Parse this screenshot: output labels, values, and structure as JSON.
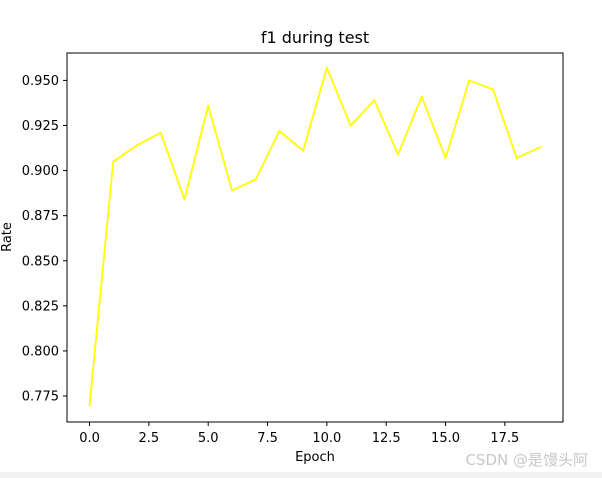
{
  "chart_data": {
    "type": "line",
    "title": "f1 during test",
    "xlabel": "Epoch",
    "ylabel": "Rate",
    "xlim": [
      -0.95,
      19.95
    ],
    "ylim": [
      0.7606,
      0.9652
    ],
    "x_ticks": [
      "0.0",
      "2.5",
      "5.0",
      "7.5",
      "10.0",
      "12.5",
      "15.0",
      "17.5"
    ],
    "y_ticks": [
      "0.775",
      "0.800",
      "0.825",
      "0.850",
      "0.875",
      "0.900",
      "0.925",
      "0.950"
    ],
    "grid": false,
    "series": [
      {
        "color": "#ffff00",
        "x": [
          0,
          1,
          2,
          3,
          4,
          5,
          6,
          7,
          8,
          9,
          10,
          11,
          12,
          13,
          14,
          15,
          16,
          17,
          18,
          19
        ],
        "values": [
          0.77,
          0.905,
          0.914,
          0.921,
          0.884,
          0.936,
          0.889,
          0.895,
          0.922,
          0.911,
          0.957,
          0.925,
          0.939,
          0.909,
          0.941,
          0.907,
          0.95,
          0.945,
          0.907,
          0.913
        ]
      }
    ]
  },
  "watermark": "CSDN @是馒头阿"
}
